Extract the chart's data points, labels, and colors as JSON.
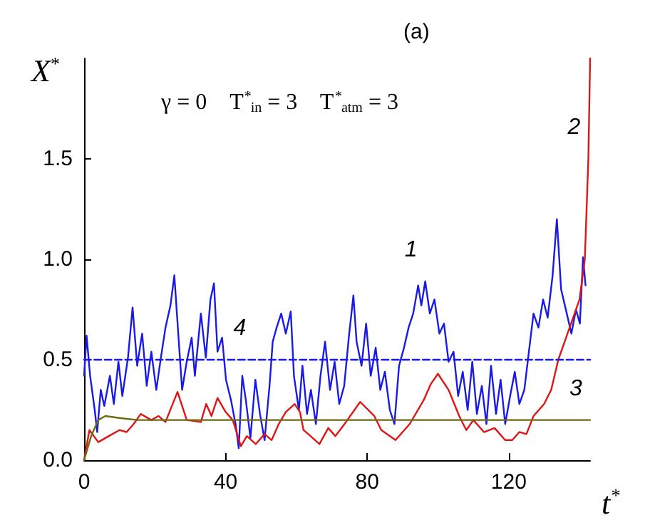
{
  "chart_data": {
    "type": "line",
    "title": "(a)",
    "xlabel": "t$^{*}$",
    "ylabel": "X$^{*}$",
    "xlim": [
      0,
      143
    ],
    "ylim": [
      0,
      2
    ],
    "xticks": [
      0,
      40,
      80,
      120
    ],
    "yticks": [
      {
        "value": 0,
        "label": "0.0"
      },
      {
        "value": 0.5,
        "label": "0.5"
      },
      {
        "value": 1,
        "label": "1.0"
      },
      {
        "value": 1.5,
        "label": "1.5"
      }
    ],
    "grid": false,
    "marker": "none",
    "series": [
      {
        "color": "#1a1ae6",
        "line_style": "solid",
        "x": [
          0,
          0.7,
          1.7,
          3,
          3.7,
          4.7,
          5.7,
          7.3,
          8.4,
          9.7,
          10.8,
          12.4,
          13.7,
          15,
          16.4,
          17.7,
          19,
          20.4,
          21.7,
          23,
          24.4,
          25.5,
          26.8,
          27.7,
          29,
          30.4,
          31.3,
          33,
          34.4,
          35.7,
          36.7,
          37.7,
          39,
          40.1,
          41.5,
          42.8,
          43.7,
          44.7,
          45.7,
          47,
          48.4,
          49.7,
          51,
          52.4,
          53.3,
          54.4,
          55.7,
          57,
          58.4,
          59.3,
          60.7,
          61.7,
          63,
          64.1,
          65.5,
          66.8,
          68.1,
          69.5,
          70.8,
          72.1,
          73.5,
          74.8,
          76.1,
          77,
          78.4,
          79.7,
          81,
          82.4,
          83.7,
          85,
          86.4,
          87.7,
          89,
          90.4,
          91.7,
          93,
          94.4,
          95.3,
          96.4,
          97.7,
          99,
          100.4,
          101.7,
          103,
          104.4,
          105.7,
          107,
          108.4,
          109.7,
          111,
          112.4,
          113.7,
          115,
          116.4,
          117.7,
          119,
          120.4,
          121.7,
          123,
          124.4,
          125.7,
          127,
          128.4,
          129.7,
          131,
          132.4,
          133.6,
          134.8,
          136.4,
          137.7,
          139,
          140.1,
          141,
          141.7
        ],
        "values": [
          0.42,
          0.62,
          0.42,
          0.25,
          0.14,
          0.35,
          0.27,
          0.42,
          0.28,
          0.49,
          0.32,
          0.51,
          0.76,
          0.47,
          0.63,
          0.37,
          0.54,
          0.35,
          0.51,
          0.66,
          0.77,
          0.92,
          0.58,
          0.35,
          0.49,
          0.61,
          0.42,
          0.73,
          0.51,
          0.8,
          0.88,
          0.54,
          0.61,
          0.4,
          0.3,
          0.18,
          0.06,
          0.42,
          0.3,
          0.11,
          0.4,
          0.23,
          0.1,
          0.37,
          0.59,
          0.66,
          0.73,
          0.63,
          0.74,
          0.42,
          0.25,
          0.47,
          0.23,
          0.35,
          0.18,
          0.42,
          0.59,
          0.35,
          0.49,
          0.28,
          0.37,
          0.61,
          0.82,
          0.59,
          0.47,
          0.68,
          0.42,
          0.56,
          0.35,
          0.44,
          0.25,
          0.18,
          0.47,
          0.56,
          0.66,
          0.73,
          0.87,
          0.77,
          0.89,
          0.73,
          0.8,
          0.63,
          0.68,
          0.49,
          0.54,
          0.32,
          0.44,
          0.25,
          0.49,
          0.23,
          0.37,
          0.18,
          0.47,
          0.23,
          0.4,
          0.18,
          0.32,
          0.44,
          0.28,
          0.35,
          0.54,
          0.73,
          0.66,
          0.8,
          0.71,
          0.92,
          1.2,
          0.85,
          0.73,
          0.63,
          0.75,
          0.68,
          1.01,
          0.87
        ]
      },
      {
        "color": "#e01515",
        "line_style": "solid",
        "x": [
          0,
          1.5,
          4,
          7,
          10,
          12,
          14,
          16,
          19,
          21,
          23,
          26.4,
          29,
          33,
          34.5,
          36,
          37.7,
          40,
          42,
          44.3,
          46,
          48.5,
          51,
          53,
          55,
          57,
          59.5,
          61,
          62,
          64,
          66.5,
          69,
          71,
          74,
          78,
          82,
          84,
          88,
          92,
          96,
          98,
          100,
          103,
          106,
          108,
          110,
          113,
          116,
          119,
          121,
          123,
          125,
          127,
          130,
          132,
          134,
          136,
          138,
          140,
          141.5,
          142.5,
          143
        ],
        "values": [
          0,
          0.15,
          0.09,
          0.12,
          0.15,
          0.14,
          0.18,
          0.23,
          0.2,
          0.22,
          0.19,
          0.34,
          0.2,
          0.19,
          0.28,
          0.22,
          0.31,
          0.24,
          0.2,
          0.07,
          0.12,
          0.08,
          0.13,
          0.1,
          0.18,
          0.24,
          0.28,
          0.24,
          0.15,
          0.12,
          0.08,
          0.16,
          0.12,
          0.19,
          0.29,
          0.22,
          0.15,
          0.1,
          0.18,
          0.3,
          0.38,
          0.43,
          0.35,
          0.22,
          0.15,
          0.2,
          0.14,
          0.16,
          0.1,
          0.1,
          0.14,
          0.13,
          0.22,
          0.28,
          0.35,
          0.5,
          0.6,
          0.7,
          0.8,
          1.0,
          1.5,
          2.0
        ]
      },
      {
        "color": "#6b6b10",
        "line_style": "solid",
        "x": [
          0,
          2,
          4,
          6,
          10,
          15,
          143
        ],
        "values": [
          0,
          0.12,
          0.2,
          0.22,
          0.21,
          0.2,
          0.2
        ]
      },
      {
        "color": "#1a1ae6",
        "line_style": "dashed",
        "x": [
          0,
          48,
          143
        ],
        "values": [
          0.5,
          0.5,
          0.5
        ]
      }
    ],
    "annotations": [
      "γ = 0    T$^{*}$$_{in}$ = 3    T$^{*}$$_{atm}$ = 3",
      {
        "text": "1",
        "x": 96.4,
        "y": 0.89
      },
      {
        "text": "2",
        "x": 142.5,
        "y": 1.5
      },
      {
        "text": "3",
        "x": 143,
        "y": 0.2
      },
      {
        "text": "4",
        "x": 48,
        "y": 0.5
      }
    ]
  }
}
